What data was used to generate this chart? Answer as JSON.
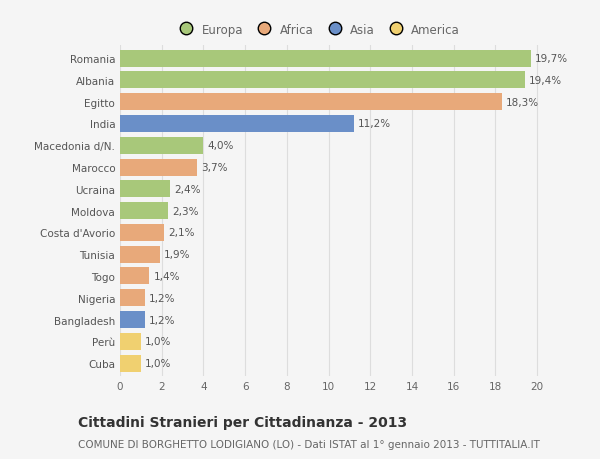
{
  "categories": [
    "Romania",
    "Albania",
    "Egitto",
    "India",
    "Macedonia d/N.",
    "Marocco",
    "Ucraina",
    "Moldova",
    "Costa d'Avorio",
    "Tunisia",
    "Togo",
    "Nigeria",
    "Bangladesh",
    "Perù",
    "Cuba"
  ],
  "values": [
    19.7,
    19.4,
    18.3,
    11.2,
    4.0,
    3.7,
    2.4,
    2.3,
    2.1,
    1.9,
    1.4,
    1.2,
    1.2,
    1.0,
    1.0
  ],
  "labels": [
    "19,7%",
    "19,4%",
    "18,3%",
    "11,2%",
    "4,0%",
    "3,7%",
    "2,4%",
    "2,3%",
    "2,1%",
    "1,9%",
    "1,4%",
    "1,2%",
    "1,2%",
    "1,0%",
    "1,0%"
  ],
  "continents": [
    "Europa",
    "Europa",
    "Africa",
    "Asia",
    "Europa",
    "Africa",
    "Europa",
    "Europa",
    "Africa",
    "Africa",
    "Africa",
    "Africa",
    "Asia",
    "America",
    "America"
  ],
  "colors": {
    "Europa": "#a8c87a",
    "Africa": "#e8a97a",
    "Asia": "#6a8fc8",
    "America": "#f0d070"
  },
  "xlim": [
    0,
    21
  ],
  "xticks": [
    0,
    2,
    4,
    6,
    8,
    10,
    12,
    14,
    16,
    18,
    20
  ],
  "title": "Cittadini Stranieri per Cittadinanza - 2013",
  "subtitle": "COMUNE DI BORGHETTO LODIGIANO (LO) - Dati ISTAT al 1° gennaio 2013 - TUTTITALIA.IT",
  "background_color": "#f5f5f5",
  "bar_height": 0.78,
  "grid_color": "#dddddd",
  "label_fontsize": 7.5,
  "tick_fontsize": 7.5,
  "title_fontsize": 10,
  "subtitle_fontsize": 7.5,
  "legend_fontsize": 8.5
}
